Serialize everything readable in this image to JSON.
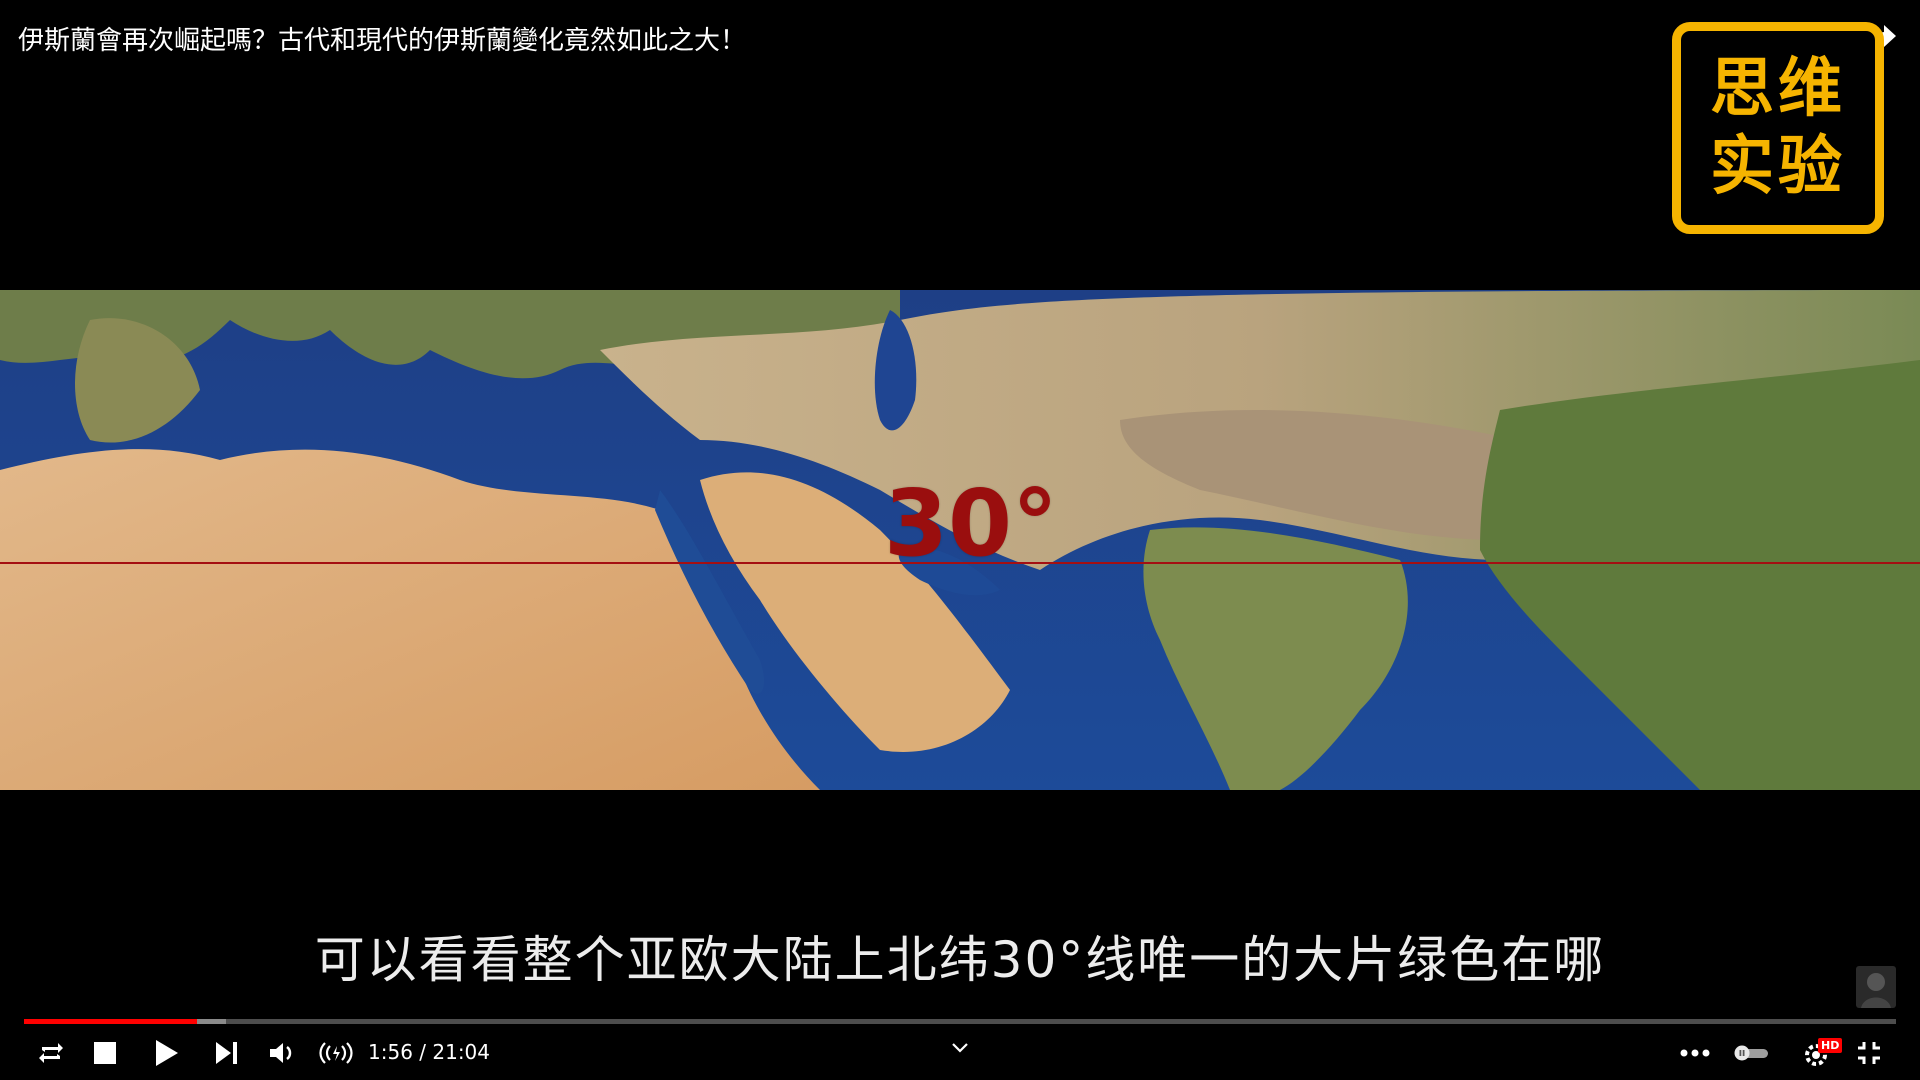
{
  "video": {
    "title": "伊斯蘭會再次崛起嗎？古代和現代的伊斯蘭變化竟然如此之大！",
    "logo_line1": "思维",
    "logo_line2": "实验",
    "map_label": "30°",
    "subtitle": "可以看看整个亚欧大陆上北纬30°线唯一的大片绿色在哪",
    "progress_played": 0.0925,
    "progress_buffered": 0.108
  },
  "player": {
    "time_display": "1:56 / 21:04",
    "hd_badge": "HD",
    "icons": {
      "watch_later": "clock-icon",
      "share": "share-arrow-icon",
      "loop": "loop-icon",
      "stop": "stop-icon",
      "play": "play-icon",
      "next": "next-icon",
      "volume": "volume-icon",
      "broadcast": "broadcast-icon",
      "more": "more-dots-icon",
      "autoplay": "autoplay-toggle-icon",
      "settings": "gear-icon",
      "exit_fullscreen": "exit-fullscreen-icon"
    }
  },
  "colors": {
    "accent_red": "#ff0000",
    "logo_yellow": "#f6b400",
    "label_red": "#9a0e0e"
  }
}
